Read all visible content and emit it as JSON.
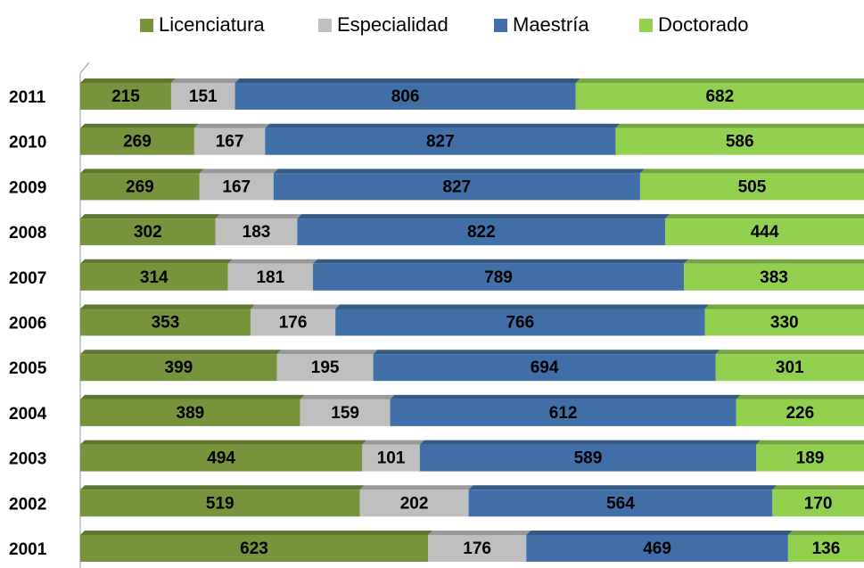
{
  "chart_data": {
    "type": "bar",
    "orientation": "horizontal",
    "stacking": "percent",
    "categories": [
      "2011",
      "2010",
      "2009",
      "2008",
      "2007",
      "2006",
      "2005",
      "2004",
      "2003",
      "2002",
      "2001"
    ],
    "series": [
      {
        "name": "Licenciatura",
        "color": "#77933c",
        "values": [
          215,
          269,
          269,
          302,
          314,
          353,
          399,
          389,
          494,
          519,
          623
        ]
      },
      {
        "name": "Especialidad",
        "color": "#bfbfbf",
        "values": [
          151,
          167,
          167,
          183,
          181,
          176,
          195,
          159,
          101,
          202,
          176
        ]
      },
      {
        "name": "Maestría",
        "color": "#4170a8",
        "values": [
          806,
          827,
          827,
          822,
          789,
          766,
          694,
          612,
          589,
          564,
          469
        ]
      },
      {
        "name": "Doctorado",
        "color": "#92d050",
        "values": [
          682,
          586,
          505,
          444,
          383,
          330,
          301,
          226,
          189,
          170,
          136
        ]
      }
    ],
    "legend": "top"
  }
}
